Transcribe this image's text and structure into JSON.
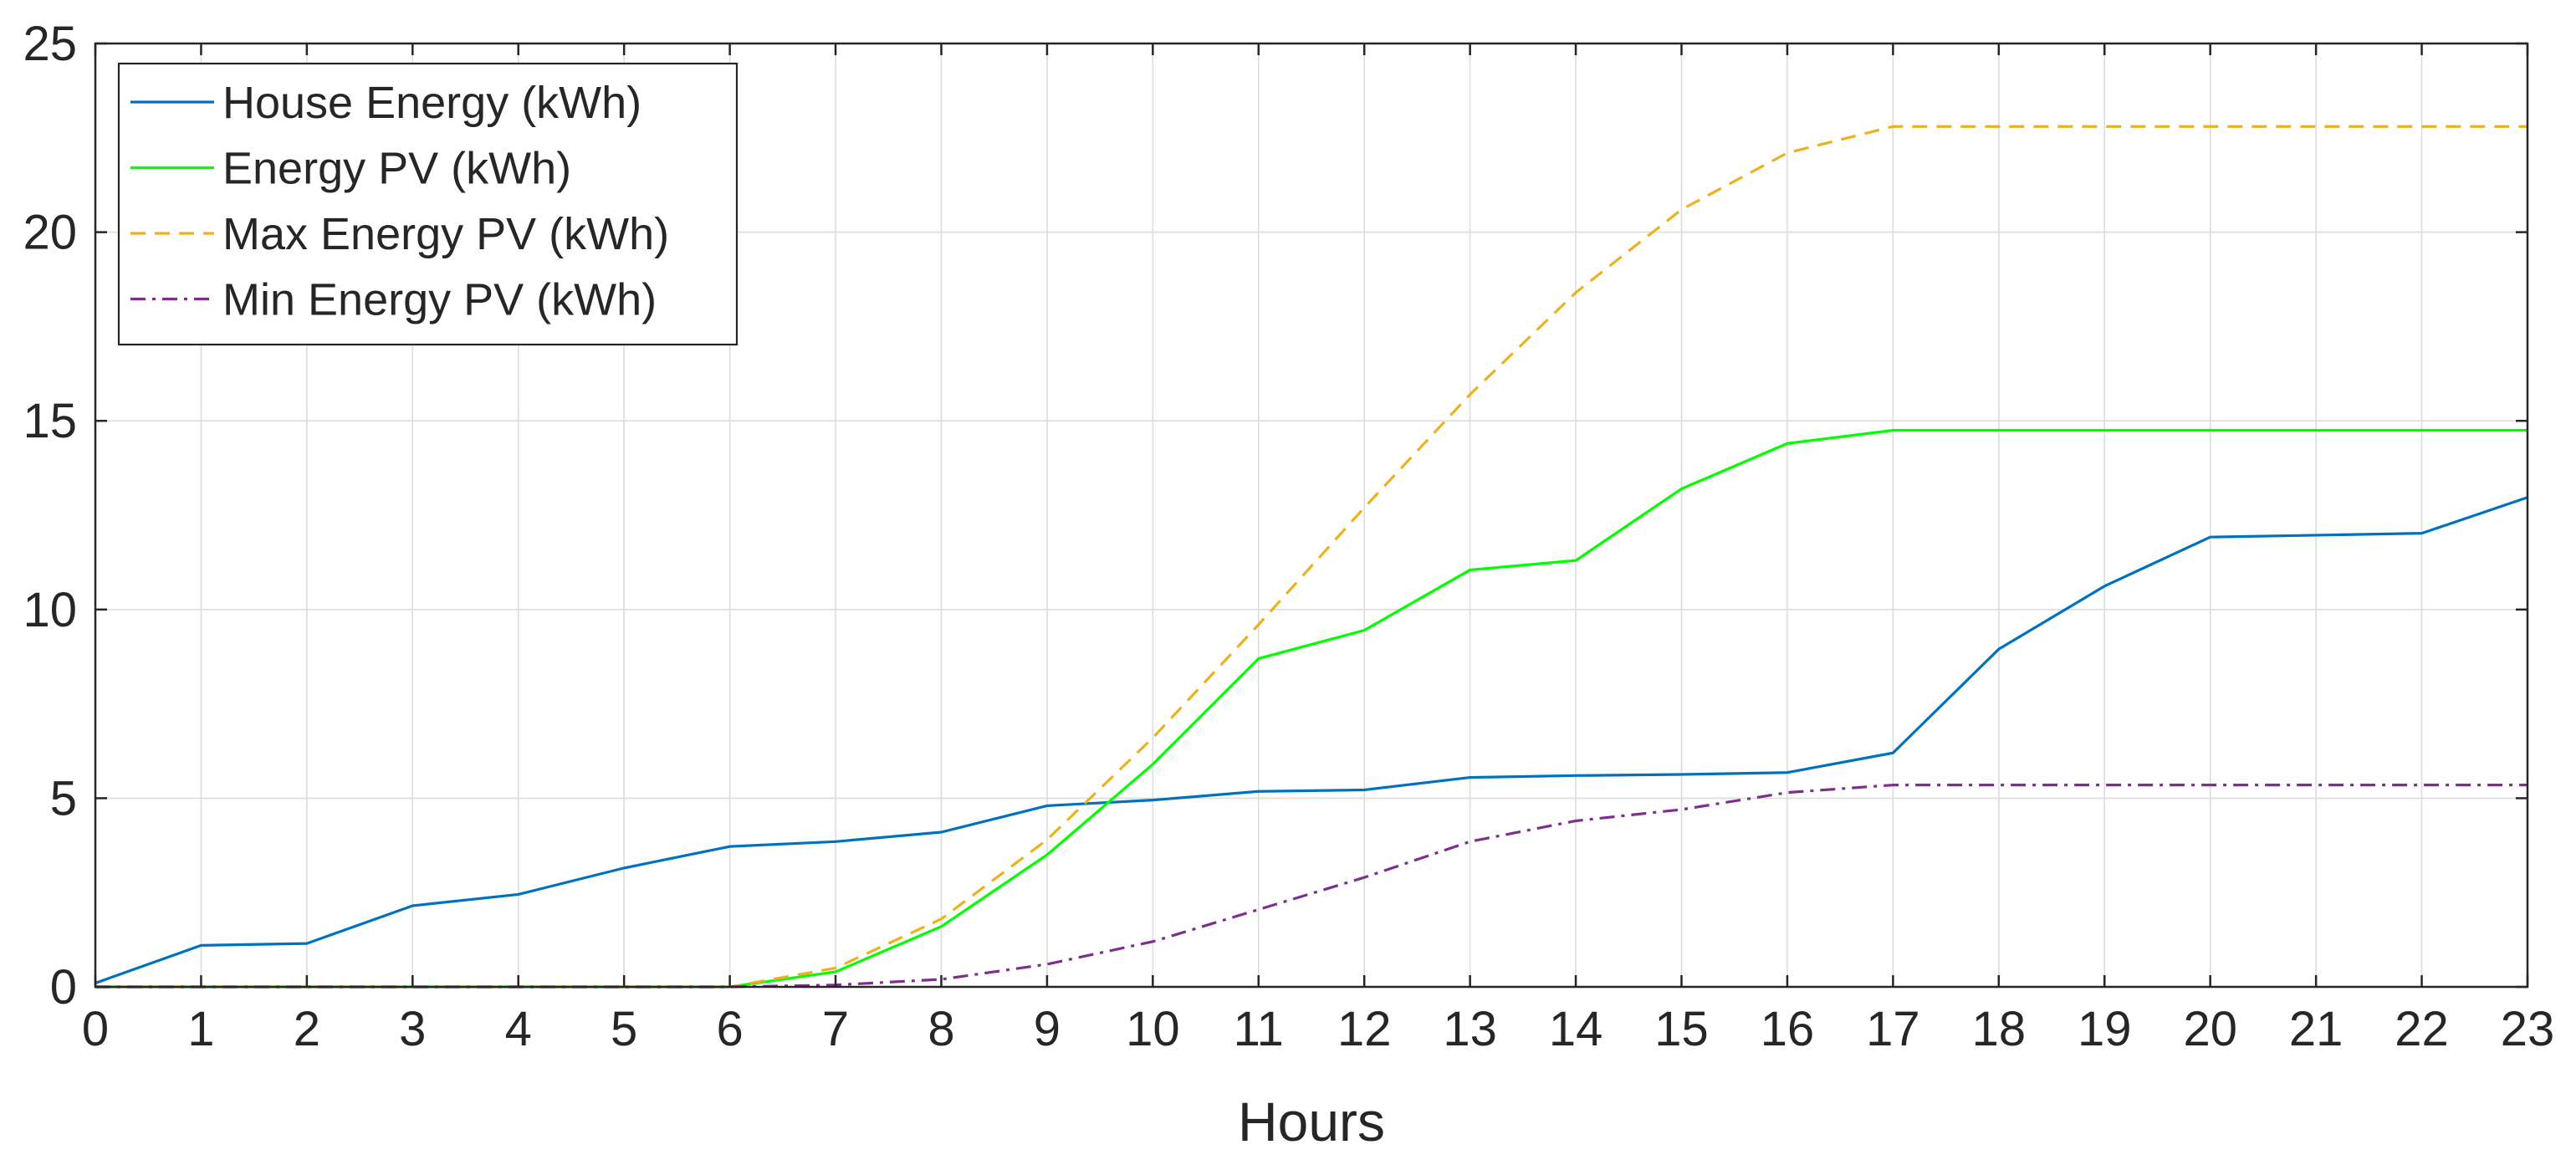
{
  "chart_data": {
    "type": "line",
    "title": "",
    "xlabel": "Hours",
    "ylabel": "",
    "xlim": [
      0,
      23
    ],
    "ylim": [
      0,
      25
    ],
    "x_ticks": [
      0,
      1,
      2,
      3,
      4,
      5,
      6,
      7,
      8,
      9,
      10,
      11,
      12,
      13,
      14,
      15,
      16,
      17,
      18,
      19,
      20,
      21,
      22,
      23
    ],
    "y_ticks": [
      0,
      5,
      10,
      15,
      20,
      25
    ],
    "grid": true,
    "legend_position": "top-left",
    "x": [
      0,
      1,
      2,
      3,
      4,
      5,
      6,
      7,
      8,
      9,
      10,
      11,
      12,
      13,
      14,
      15,
      16,
      17,
      18,
      19,
      20,
      21,
      22,
      23
    ],
    "series": [
      {
        "name": "House Energy (kWh)",
        "color": "#0072BD",
        "style": "solid",
        "values": [
          0.1,
          1.1,
          1.15,
          2.15,
          2.45,
          3.15,
          3.72,
          3.85,
          4.1,
          4.8,
          4.95,
          5.18,
          5.22,
          5.55,
          5.6,
          5.63,
          5.68,
          6.2,
          8.95,
          10.62,
          11.92,
          11.97,
          12.02,
          12.97
        ]
      },
      {
        "name": "Energy PV (kWh)",
        "color": "#00FF00",
        "style": "solid",
        "values": [
          0,
          0,
          0,
          0,
          0,
          0,
          0,
          0.4,
          1.6,
          3.5,
          5.9,
          8.7,
          9.45,
          11.05,
          11.3,
          13.2,
          14.4,
          14.75,
          14.75,
          14.75,
          14.75,
          14.75,
          14.75,
          14.75
        ]
      },
      {
        "name": "Max Energy PV (kWh)",
        "color": "#EDB120",
        "style": "dashed",
        "values": [
          0,
          0,
          0,
          0,
          0,
          0,
          0,
          0.5,
          1.8,
          3.9,
          6.6,
          9.6,
          12.7,
          15.7,
          18.4,
          20.6,
          22.1,
          22.8,
          22.8,
          22.8,
          22.8,
          22.8,
          22.8,
          22.8
        ]
      },
      {
        "name": "Min Energy PV (kWh)",
        "color": "#7E2F8E",
        "style": "dashdot",
        "values": [
          0,
          0,
          0,
          0,
          0,
          0,
          0,
          0.05,
          0.2,
          0.6,
          1.2,
          2.05,
          2.9,
          3.85,
          4.4,
          4.7,
          5.15,
          5.35,
          5.35,
          5.35,
          5.35,
          5.35,
          5.35,
          5.35
        ]
      }
    ]
  }
}
